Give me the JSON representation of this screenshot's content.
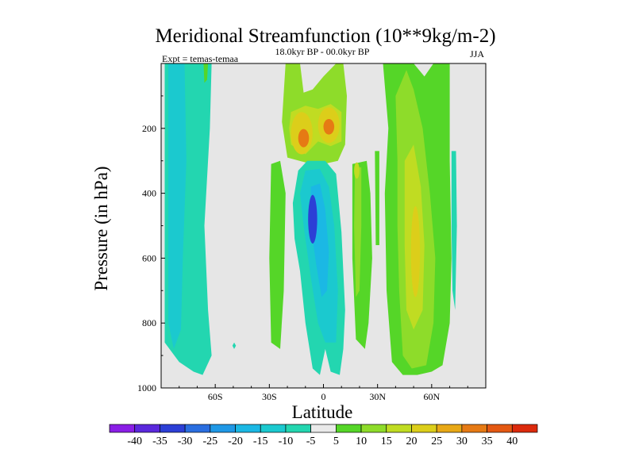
{
  "chart_data": {
    "type": "heatmap",
    "title": "Meridional Streamfunction (10**9kg/m-2)",
    "subtitle": "18.0kyr BP - 00.0kyr BP",
    "left_label": "Expt = temas-temaa",
    "season": "JJA",
    "xlabel": "Latitude",
    "ylabel": "Pressure (in hPa)",
    "xlim": [
      -90,
      90
    ],
    "ylim": [
      1000,
      0
    ],
    "x_ticks": [
      -60,
      -30,
      0,
      30,
      60
    ],
    "x_tick_labels": [
      "60S",
      "30S",
      "0",
      "30N",
      "60N"
    ],
    "y_ticks": [
      200,
      400,
      600,
      800,
      1000
    ],
    "y_tick_labels": [
      "200",
      "400",
      "600",
      "800",
      "1000"
    ],
    "missing_color": "#e6e6e6",
    "colorbar": {
      "levels": [
        -40,
        -35,
        -30,
        -25,
        -20,
        -15,
        -10,
        -5,
        5,
        10,
        15,
        20,
        25,
        30,
        35,
        40
      ],
      "level_labels": [
        "-40",
        "-35",
        "-30",
        "-25",
        "-20",
        "-15",
        "-10",
        "-5",
        "5",
        "10",
        "15",
        "20",
        "25",
        "30",
        "35",
        "40"
      ],
      "colors": [
        "#8a1ee6",
        "#5a28dc",
        "#2c3fd6",
        "#2a6ee0",
        "#1f98e6",
        "#1bb8e4",
        "#1bc9cf",
        "#23d6b0",
        "#eaeaea",
        "#55d628",
        "#8edc2a",
        "#c0dc22",
        "#dcce1a",
        "#e8a816",
        "#e67a14",
        "#e45812",
        "#dc2a0c"
      ]
    },
    "regions": [
      {
        "name": "Antarctic negative cell",
        "value": -7,
        "lat_range": [
          -88,
          -62
        ],
        "p_range": [
          0,
          960
        ]
      },
      {
        "name": "Antarctic inner negative cell",
        "value": -12,
        "lat_range": [
          -86,
          -76
        ],
        "p_range": [
          0,
          900
        ]
      },
      {
        "name": "Polar positive sliver",
        "value": 7,
        "lat_range": [
          -66,
          -64
        ],
        "p_range": [
          0,
          60
        ]
      },
      {
        "name": "Isolated negative spot",
        "value": -7,
        "lat": -49,
        "p": 870
      },
      {
        "name": "Upper tropical positive cell",
        "value": 10,
        "lat_range": [
          -23,
          13
        ],
        "p_range": [
          0,
          300
        ]
      },
      {
        "name": "Upper tropical maxima",
        "value": 30,
        "centers": [
          {
            "lat": -11,
            "p": 230
          },
          {
            "lat": 3,
            "p": 195
          }
        ]
      },
      {
        "name": "Southern tropical flank positive",
        "value": 7,
        "lat_range": [
          -30,
          -21
        ],
        "p_range": [
          300,
          900
        ]
      },
      {
        "name": "Equatorial negative cell",
        "value": -25,
        "lat_range": [
          -17,
          12
        ],
        "p_range": [
          300,
          960
        ]
      },
      {
        "name": "Equatorial negative core",
        "value": -32,
        "center": {
          "lat": -6,
          "p": 480
        }
      },
      {
        "name": "Northern tropical positive band",
        "value": 12,
        "lat_range": [
          16,
          27
        ],
        "p_range": [
          300,
          880
        ]
      },
      {
        "name": "Northern tropical peak",
        "value": 18,
        "center": {
          "lat": 18,
          "p": 330
        }
      },
      {
        "name": "Mid-latitude positive cell",
        "value": 12,
        "lat_range": [
          33,
          70
        ],
        "p_range": [
          0,
          960
        ]
      },
      {
        "name": "Mid-latitude positive core",
        "value": 22,
        "center": {
          "lat": 51,
          "p": 580
        }
      },
      {
        "name": "Arctic negative sliver",
        "value": -7,
        "lat_range": [
          71,
          74
        ],
        "p_range": [
          270,
          760
        ]
      }
    ]
  }
}
